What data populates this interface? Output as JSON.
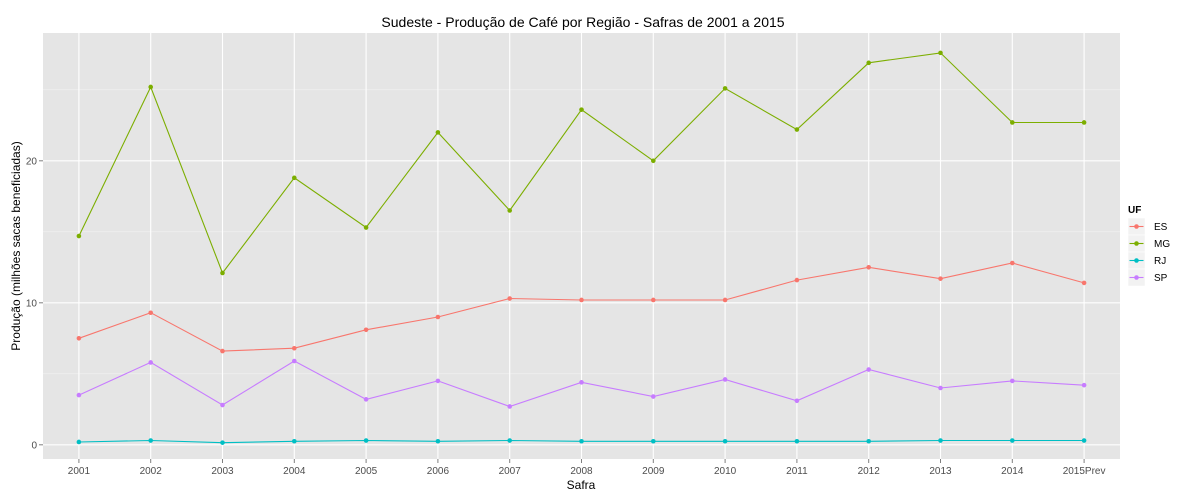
{
  "chart_data": {
    "type": "line",
    "title": "Sudeste  - Produção de Café por Região - Safras de 2001 a 2015",
    "xlabel": "Safra",
    "ylabel": "Produção (milhões sacas beneficiadas)",
    "categories": [
      "2001",
      "2002",
      "2003",
      "2004",
      "2005",
      "2006",
      "2007",
      "2008",
      "2009",
      "2010",
      "2011",
      "2012",
      "2013",
      "2014",
      "2015Prev"
    ],
    "yticks": [
      0,
      10,
      20
    ],
    "ylim": [
      -1,
      29
    ],
    "grid": true,
    "legend": {
      "title": "UF",
      "placement": "right"
    },
    "series": [
      {
        "name": "ES",
        "color": "#F8766D",
        "values": [
          7.5,
          9.3,
          6.6,
          6.8,
          8.1,
          9.0,
          10.3,
          10.2,
          10.2,
          10.2,
          11.6,
          12.5,
          11.7,
          12.8,
          11.4
        ]
      },
      {
        "name": "MG",
        "color": "#7CAE00",
        "values": [
          14.7,
          25.2,
          12.1,
          18.8,
          15.3,
          22.0,
          16.5,
          23.6,
          20.0,
          25.1,
          22.2,
          26.9,
          27.6,
          22.7,
          22.7
        ]
      },
      {
        "name": "RJ",
        "color": "#00BFC4",
        "values": [
          0.2,
          0.3,
          0.15,
          0.25,
          0.3,
          0.25,
          0.3,
          0.25,
          0.25,
          0.25,
          0.25,
          0.25,
          0.3,
          0.3,
          0.3
        ]
      },
      {
        "name": "SP",
        "color": "#C77CFF",
        "values": [
          3.5,
          5.8,
          2.8,
          5.9,
          3.2,
          4.5,
          2.7,
          4.4,
          3.4,
          4.6,
          3.1,
          5.3,
          4.0,
          4.5,
          4.2
        ]
      }
    ]
  }
}
